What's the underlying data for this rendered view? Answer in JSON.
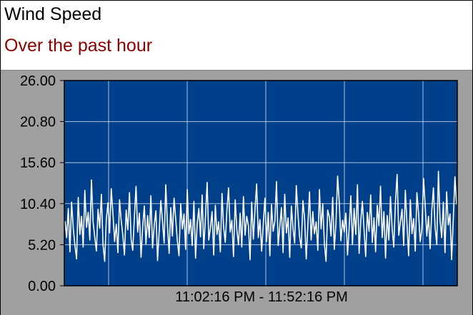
{
  "header": {
    "title": "Wind Speed",
    "subtitle": "Over the past hour"
  },
  "chart_data": {
    "type": "line",
    "title": "Wind Speed",
    "subtitle": "Over the past hour",
    "xlabel": "",
    "ylabel": "",
    "ylim": [
      0,
      26
    ],
    "yticks": [
      "26.00",
      "20.80",
      "15.60",
      "10.40",
      "5.20",
      "0.00"
    ],
    "x_range_label": "11:02:16 PM  -  11:52:16 PM",
    "x_start": "11:02:16 PM",
    "x_end": "11:52:16 PM",
    "grid": true,
    "colors": {
      "plot_background": "#003f8a",
      "line": "#ffffff",
      "grid": "#c8d8f0",
      "panel": "#a0a0a0",
      "subtitle": "#8b0000"
    },
    "series": [
      {
        "values": [
          8.2,
          6.1,
          9.8,
          4.3,
          10.6,
          7.2,
          5.1,
          3.4,
          11.2,
          6.5,
          8.8,
          4.9,
          12.1,
          7.4,
          9.3,
          5.8,
          13.4,
          8.1,
          6.2,
          4.4,
          9.7,
          7.3,
          11.6,
          5.2,
          3.1,
          8.4,
          10.5,
          6.7,
          12.3,
          9.1,
          5.6,
          7.8,
          4.2,
          10.9,
          8.3,
          6.4,
          3.9,
          9.6,
          7.1,
          11.8,
          5.9,
          4.5,
          8.7,
          12.6,
          6.8,
          9.2,
          3.6,
          7.5,
          10.1,
          5.3,
          8.9,
          6.1,
          11.4,
          4.8,
          7.7,
          9.5,
          3.2,
          6.9,
          10.8,
          8.2,
          5.4,
          12.8,
          7.6,
          4.1,
          9.9,
          6.3,
          11.1,
          8.5,
          5.7,
          3.8,
          10.4,
          7.2,
          9.1,
          4.6,
          12.2,
          6.6,
          8.4,
          5.1,
          10.7,
          3.5,
          7.9,
          9.8,
          6.2,
          11.5,
          4.7,
          8.6,
          13.1,
          5.8,
          7.3,
          9.4,
          3.9,
          10.2,
          6.5,
          8.1,
          4.3,
          11.7,
          7.4,
          5.5,
          9.6,
          12.4,
          6.8,
          8.3,
          3.7,
          10.9,
          7.1,
          5.2,
          9.2,
          4.9,
          11.3,
          6.4,
          8.8,
          7.6,
          3.3,
          10.6,
          5.9,
          9.7,
          12.9,
          6.1,
          8.4,
          4.4,
          7.8,
          11.1,
          5.6,
          9.3,
          3.8,
          10.3,
          6.9,
          8.2,
          13.2,
          5.1,
          7.5,
          9.9,
          4.2,
          11.6,
          6.7,
          8.6,
          3.6,
          10.1,
          7.3,
          5.4,
          12.7,
          9.1,
          6.2,
          4.8,
          10.8,
          8.5,
          3.4,
          7.7,
          11.9,
          5.8,
          9.4,
          6.6,
          8.1,
          4.5,
          12.2,
          7.2,
          10.4,
          5.3,
          3.1,
          9.6,
          8.7,
          6.3,
          11.2,
          4.6,
          7.9,
          13.9,
          10.6,
          5.7,
          8.3,
          6.8,
          9.2,
          3.9,
          7.4,
          11.4,
          5.2,
          9.8,
          6.5,
          12.8,
          4.1,
          8.2,
          10.7,
          7.1,
          3.7,
          9.3,
          6.9,
          11.5,
          5.5,
          8.6,
          4.3,
          10.2,
          7.6,
          12.6,
          6.1,
          9.4,
          3.5,
          8.9,
          5.8,
          11.3,
          7.3,
          4.9,
          10.5,
          14.1,
          6.4,
          8.1,
          9.7,
          5.1,
          12.1,
          7.8,
          3.8,
          10.9,
          6.6,
          8.5,
          4.4,
          11.8,
          9.2,
          5.6,
          7.2,
          13.6,
          10.1,
          6.3,
          8.8,
          4.7,
          9.5,
          12.4,
          7.5,
          5.2,
          14.5,
          8.3,
          6.1,
          10.6,
          4.2,
          11.9,
          7.7,
          9.1,
          3.3,
          8.4,
          13.8,
          10.3
        ]
      }
    ]
  }
}
